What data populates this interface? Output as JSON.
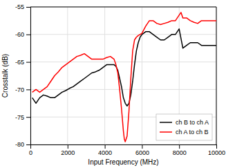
{
  "chart_data": {
    "type": "line",
    "xlabel": "Input Frequency (MHz)",
    "ylabel": "Crosstalk (dB)",
    "xlim": [
      0,
      10000
    ],
    "ylim": [
      -80,
      -55
    ],
    "xticks": [
      0,
      2000,
      4000,
      6000,
      8000,
      10000
    ],
    "yticks": [
      -80,
      -75,
      -70,
      -65,
      -60,
      -55
    ],
    "grid": true,
    "legend": "lower right",
    "series": [
      {
        "name": "ch B to ch A",
        "color": "black",
        "x": [
          100,
          300,
          500,
          700,
          900,
          1100,
          1300,
          1500,
          1700,
          1900,
          2100,
          2300,
          2500,
          2700,
          2900,
          3100,
          3300,
          3500,
          3700,
          3900,
          4100,
          4300,
          4500,
          4600,
          4700,
          4800,
          4900,
          5000,
          5100,
          5200,
          5300,
          5400,
          5500,
          5600,
          5700,
          5800,
          5900,
          6000,
          6200,
          6400,
          6600,
          6800,
          7000,
          7200,
          7400,
          7600,
          7800,
          8000,
          8200,
          8400,
          8600,
          8800,
          9000,
          9200,
          9400,
          9600,
          9800,
          10000
        ],
        "values": [
          -71.5,
          -72.5,
          -71.5,
          -71.0,
          -71.2,
          -71.5,
          -71.5,
          -71.0,
          -70.5,
          -70.2,
          -69.8,
          -69.5,
          -69.0,
          -68.5,
          -68.0,
          -67.5,
          -67.0,
          -66.8,
          -66.5,
          -66.0,
          -65.5,
          -65.5,
          -65.5,
          -65.8,
          -66.5,
          -68.0,
          -69.5,
          -71.5,
          -72.5,
          -73.0,
          -72.5,
          -71.0,
          -68.5,
          -65.5,
          -63.0,
          -61.5,
          -60.5,
          -60.0,
          -59.5,
          -59.5,
          -60.0,
          -60.5,
          -61.0,
          -61.0,
          -60.5,
          -60.0,
          -60.0,
          -59.0,
          -62.5,
          -62.0,
          -61.5,
          -61.5,
          -61.5,
          -62.0,
          -62.0,
          -62.0,
          -62.0,
          -62.0
        ]
      },
      {
        "name": "ch A to ch B",
        "color": "red",
        "x": [
          100,
          300,
          500,
          700,
          900,
          1100,
          1300,
          1500,
          1700,
          1900,
          2100,
          2300,
          2500,
          2700,
          2900,
          3100,
          3300,
          3500,
          3700,
          3900,
          4100,
          4300,
          4500,
          4600,
          4700,
          4800,
          4900,
          5000,
          5050,
          5100,
          5200,
          5300,
          5400,
          5500,
          5600,
          5700,
          5800,
          5900,
          6000,
          6200,
          6400,
          6600,
          6800,
          7000,
          7200,
          7400,
          7600,
          7800,
          8000,
          8100,
          8200,
          8400,
          8600,
          8800,
          9000,
          9200,
          9400,
          9600,
          9800,
          10000
        ],
        "values": [
          -70.5,
          -70.0,
          -70.5,
          -70.0,
          -69.5,
          -68.5,
          -67.5,
          -66.8,
          -66.0,
          -65.5,
          -65.0,
          -64.5,
          -64.0,
          -63.8,
          -63.5,
          -64.0,
          -64.5,
          -64.5,
          -64.5,
          -64.5,
          -64.2,
          -64.0,
          -64.5,
          -65.5,
          -67.0,
          -70.0,
          -73.5,
          -77.5,
          -79.0,
          -79.5,
          -78.5,
          -74.0,
          -68.0,
          -63.0,
          -61.0,
          -60.5,
          -60.2,
          -60.0,
          -59.8,
          -58.5,
          -57.5,
          -57.5,
          -58.0,
          -58.2,
          -58.0,
          -57.8,
          -57.5,
          -57.5,
          -56.5,
          -56.0,
          -57.0,
          -57.0,
          -57.5,
          -57.8,
          -58.0,
          -57.5,
          -57.5,
          -57.5,
          -57.5,
          -57.5
        ]
      }
    ]
  }
}
